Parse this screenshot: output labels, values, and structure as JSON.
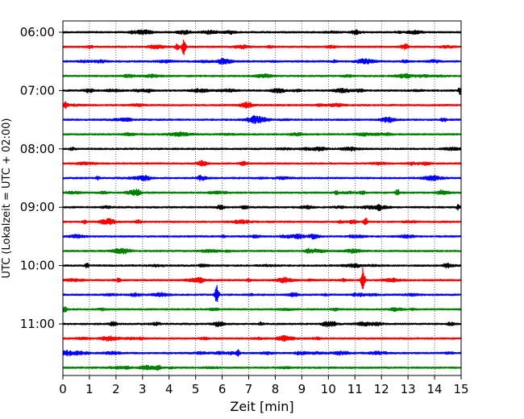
{
  "chart_data": {
    "type": "line",
    "title": "",
    "xlabel": "Zeit  [min]",
    "ylabel": "UTC (Lokalzeit = UTC + 02:00)",
    "xlim": [
      0,
      15
    ],
    "x_ticks": [
      "0",
      "1",
      "2",
      "3",
      "4",
      "5",
      "6",
      "7",
      "8",
      "9",
      "10",
      "11",
      "12",
      "13",
      "14",
      "15"
    ],
    "y_ticks": [
      "06:00",
      "07:00",
      "08:00",
      "09:00",
      "10:00",
      "11:00"
    ],
    "grid": "vertical dotted at each minute",
    "rows_per_hour": 4,
    "color_cycle": [
      "#000000",
      "#ff0000",
      "#0000ff",
      "#008000"
    ],
    "traces": [
      {
        "start": "06:00",
        "events": []
      },
      {
        "start": "06:15",
        "events": [
          {
            "minute": 4.55,
            "amplitude": 10
          },
          {
            "minute": 4.3,
            "amplitude": 4
          }
        ]
      },
      {
        "start": "06:30",
        "events": []
      },
      {
        "start": "06:45",
        "events": []
      },
      {
        "start": "07:00",
        "events": [
          {
            "minute": 14.95,
            "amplitude": 4
          }
        ]
      },
      {
        "start": "07:15",
        "events": [
          {
            "minute": 0.1,
            "amplitude": 4
          }
        ]
      },
      {
        "start": "07:30",
        "events": []
      },
      {
        "start": "07:45",
        "events": []
      },
      {
        "start": "08:00",
        "events": []
      },
      {
        "start": "08:15",
        "events": []
      },
      {
        "start": "08:30",
        "events": [
          {
            "minute": 1.3,
            "amplitude": 2
          }
        ]
      },
      {
        "start": "08:45",
        "events": [
          {
            "minute": 12.6,
            "amplitude": 4
          },
          {
            "minute": 10.3,
            "amplitude": 2
          },
          {
            "minute": 14.2,
            "amplitude": 2
          }
        ]
      },
      {
        "start": "09:00",
        "events": [
          {
            "minute": 11.9,
            "amplitude": 3
          },
          {
            "minute": 14.9,
            "amplitude": 3
          }
        ]
      },
      {
        "start": "09:15",
        "events": [
          {
            "minute": 11.4,
            "amplitude": 5
          },
          {
            "minute": 0.8,
            "amplitude": 2
          }
        ]
      },
      {
        "start": "09:30",
        "events": []
      },
      {
        "start": "09:45",
        "events": []
      },
      {
        "start": "10:00",
        "events": [
          {
            "minute": 0.9,
            "amplitude": 3
          }
        ]
      },
      {
        "start": "10:15",
        "events": [
          {
            "minute": 11.3,
            "amplitude": 15
          },
          {
            "minute": 2.1,
            "amplitude": 2
          },
          {
            "minute": 7.0,
            "amplitude": 2
          }
        ]
      },
      {
        "start": "10:30",
        "events": [
          {
            "minute": 5.8,
            "amplitude": 12
          }
        ]
      },
      {
        "start": "10:45",
        "events": [
          {
            "minute": 12.5,
            "amplitude": 2
          },
          {
            "minute": 0.1,
            "amplitude": 2
          }
        ]
      },
      {
        "start": "11:00",
        "events": []
      },
      {
        "start": "11:15",
        "events": []
      },
      {
        "start": "11:30",
        "events": [
          {
            "minute": 6.6,
            "amplitude": 4
          }
        ]
      },
      {
        "start": "11:45",
        "events": [
          {
            "minute": 3.6,
            "amplitude": 3
          }
        ]
      }
    ]
  }
}
